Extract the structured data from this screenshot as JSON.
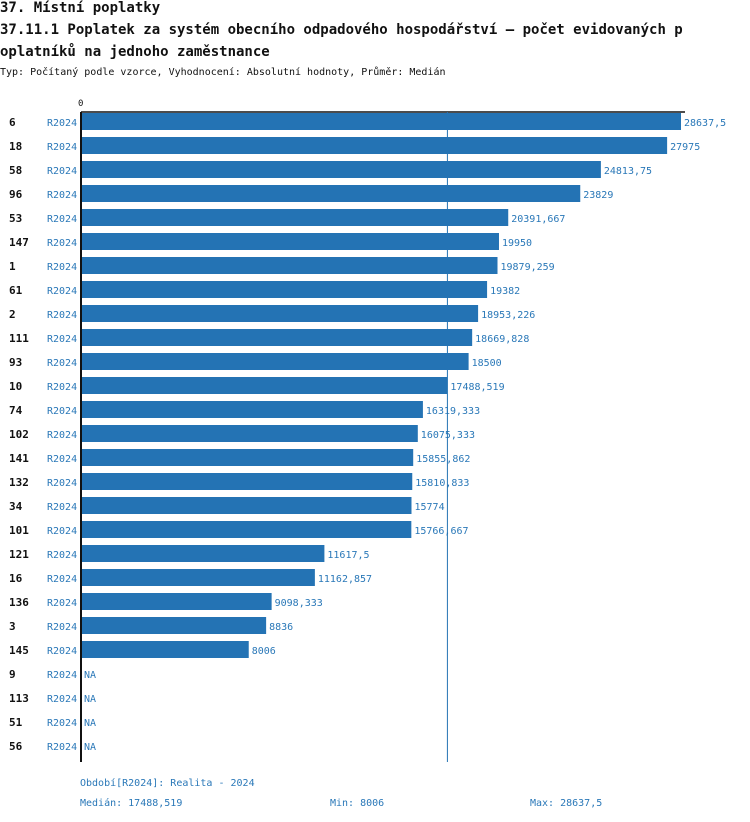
{
  "header": {
    "section_title": "37. Místní poplatky",
    "indicator_title_line1": "37.11.1 Poplatek za systém obecního odpadového hospodářství – počet evidovaných p",
    "indicator_title_line2": "oplatníků na jednoho zaměstnance",
    "subtitle": "Typ: Počítaný podle vzorce, Vyhodnocení: Absolutní hodnoty, Průměr: Medián"
  },
  "chart_data": {
    "type": "bar",
    "orientation": "horizontal",
    "axis_zero_label": "0",
    "period_label": "R2024",
    "xlim": [
      0,
      28637.5
    ],
    "median": 17488.519,
    "rows": [
      {
        "id": "6",
        "value": 28637.5,
        "label": "28637,5"
      },
      {
        "id": "18",
        "value": 27975,
        "label": "27975"
      },
      {
        "id": "58",
        "value": 24813.75,
        "label": "24813,75"
      },
      {
        "id": "96",
        "value": 23829,
        "label": "23829"
      },
      {
        "id": "53",
        "value": 20391.667,
        "label": "20391,667"
      },
      {
        "id": "147",
        "value": 19950,
        "label": "19950"
      },
      {
        "id": "1",
        "value": 19879.259,
        "label": "19879,259"
      },
      {
        "id": "61",
        "value": 19382,
        "label": "19382"
      },
      {
        "id": "2",
        "value": 18953.226,
        "label": "18953,226"
      },
      {
        "id": "111",
        "value": 18669.828,
        "label": "18669,828"
      },
      {
        "id": "93",
        "value": 18500,
        "label": "18500"
      },
      {
        "id": "10",
        "value": 17488.519,
        "label": "17488,519"
      },
      {
        "id": "74",
        "value": 16319.333,
        "label": "16319,333"
      },
      {
        "id": "102",
        "value": 16075.333,
        "label": "16075,333"
      },
      {
        "id": "141",
        "value": 15855.862,
        "label": "15855,862"
      },
      {
        "id": "132",
        "value": 15810.833,
        "label": "15810,833"
      },
      {
        "id": "34",
        "value": 15774,
        "label": "15774"
      },
      {
        "id": "101",
        "value": 15766.667,
        "label": "15766,667"
      },
      {
        "id": "121",
        "value": 11617.5,
        "label": "11617,5"
      },
      {
        "id": "16",
        "value": 11162.857,
        "label": "11162,857"
      },
      {
        "id": "136",
        "value": 9098.333,
        "label": "9098,333"
      },
      {
        "id": "3",
        "value": 8836,
        "label": "8836"
      },
      {
        "id": "145",
        "value": 8006,
        "label": "8006"
      },
      {
        "id": "9",
        "value": null,
        "label": "NA"
      },
      {
        "id": "113",
        "value": null,
        "label": "NA"
      },
      {
        "id": "51",
        "value": null,
        "label": "NA"
      },
      {
        "id": "56",
        "value": null,
        "label": "NA"
      }
    ]
  },
  "footer": {
    "period": "Období[R2024]: Realita - 2024",
    "median": "Medián: 17488,519",
    "min": "Min: 8006",
    "max": "Max: 28637,5"
  },
  "colors": {
    "bar": "#2473b4",
    "label": "#2a78b8",
    "text": "#111111"
  }
}
